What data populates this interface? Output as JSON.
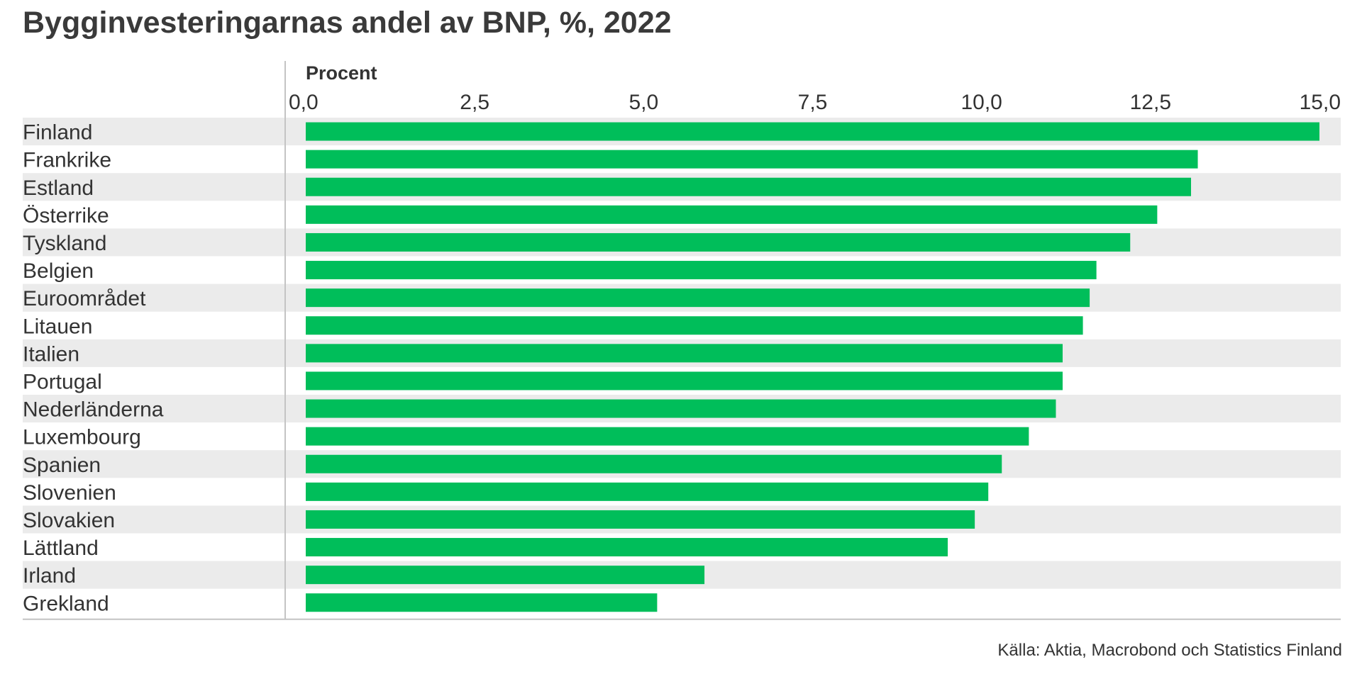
{
  "title": "Bygginvesteringarnas andel av BNP, %, 2022",
  "source": "Källa: Aktia, Macrobond och Statistics Finland",
  "colors": {
    "bar": "#00be5a",
    "stripe": "#ebebeb",
    "axis": "#c4c4c4",
    "text": "#333333"
  },
  "chart_data": {
    "type": "bar",
    "orientation": "horizontal",
    "unit_label": "Procent",
    "xlim": [
      0,
      15
    ],
    "ticks": [
      0,
      2.5,
      5,
      7.5,
      10,
      12.5,
      15
    ],
    "tick_labels": [
      "0,0",
      "2,5",
      "5,0",
      "7,5",
      "10,0",
      "12,5",
      "15,0"
    ],
    "categories": [
      "Finland",
      "Frankrike",
      "Estland",
      "Österrike",
      "Tyskland",
      "Belgien",
      "Euroområdet",
      "Litauen",
      "Italien",
      "Portugal",
      "Nederländerna",
      "Luxembourg",
      "Spanien",
      "Slovenien",
      "Slovakien",
      "Lättland",
      "Irland",
      "Grekland"
    ],
    "values": [
      15.0,
      13.2,
      13.1,
      12.6,
      12.2,
      11.7,
      11.6,
      11.5,
      11.2,
      11.2,
      11.1,
      10.7,
      10.3,
      10.1,
      9.9,
      9.5,
      5.9,
      5.2
    ],
    "grid": false,
    "legend": "none"
  }
}
